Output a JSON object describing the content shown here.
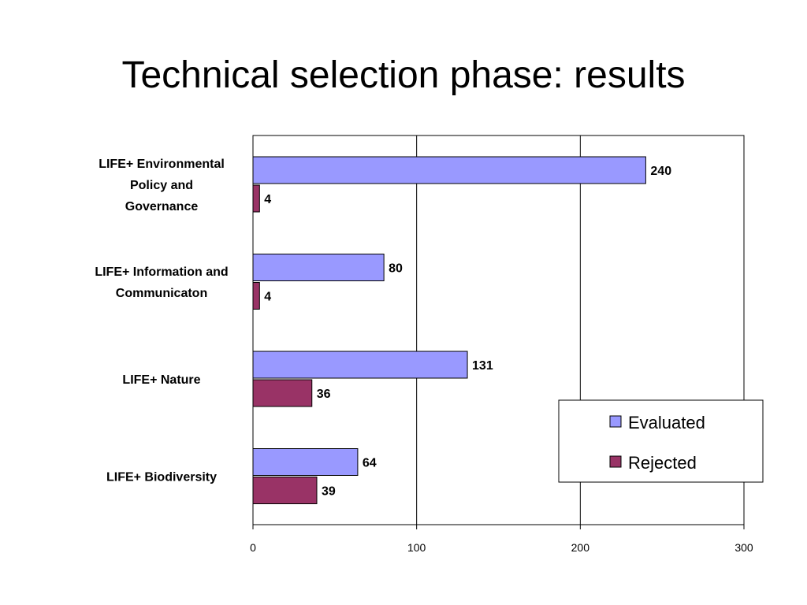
{
  "slide": {
    "title": "Technical selection phase: results"
  },
  "chart_data": {
    "type": "bar",
    "orientation": "horizontal",
    "title": "",
    "xlabel": "",
    "ylabel": "",
    "categories": [
      [
        "LIFE+ Environmental",
        "Policy and",
        "Governance"
      ],
      [
        "LIFE+ Information and",
        "Communicaton"
      ],
      [
        "LIFE+ Nature"
      ],
      [
        "LIFE+ Biodiversity"
      ]
    ],
    "series": [
      {
        "name": "Evaluated",
        "color": "#9999ff",
        "values": [
          240,
          80,
          131,
          64
        ]
      },
      {
        "name": "Rejected",
        "color": "#993366",
        "values": [
          4,
          4,
          36,
          39
        ]
      }
    ],
    "xlim": [
      0,
      300
    ],
    "xticks": [
      "0",
      "100",
      "200",
      "300"
    ],
    "grid": true,
    "legend_position": "bottom-right"
  }
}
